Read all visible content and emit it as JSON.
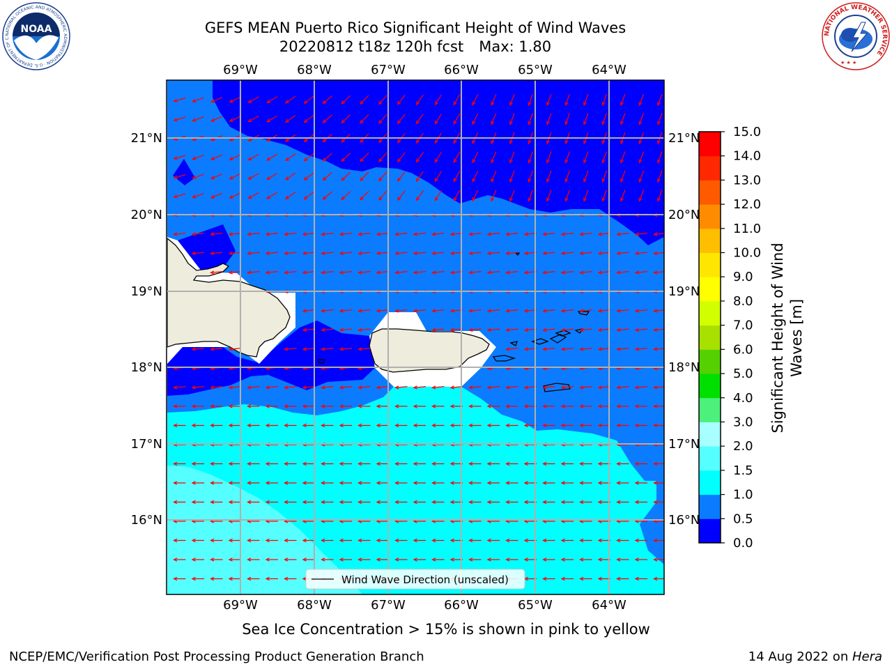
{
  "header": {
    "title_line1": "GEFS MEAN Puerto Rico Significant Height of Wind Waves",
    "title_line2_left": "20220812 t18z 120h fcst",
    "title_line2_right": "Max: 1.80"
  },
  "logos": {
    "left": {
      "name": "NOAA",
      "text": "NOAA",
      "ring_text": "NATIONAL OCEANIC AND ATMOSPHERIC ADMINISTRATION · U.S. DEPARTMENT OF COMMERCE"
    },
    "right": {
      "name": "National Weather Service",
      "ring_text": "NATIONAL WEATHER SERVICE"
    }
  },
  "map": {
    "lon_labels": [
      "69°W",
      "68°W",
      "67°W",
      "66°W",
      "65°W",
      "64°W"
    ],
    "lat_labels": [
      "21°N",
      "20°N",
      "19°N",
      "18°N",
      "17°N",
      "16°N"
    ],
    "legend_label": "Wind Wave Direction (unscaled)",
    "arrow_color": "#ff0000",
    "land_color": "#eeecdc"
  },
  "colorbar": {
    "label_line1": "Significant Height of Wind",
    "label_line2": "Waves [m]",
    "ticks": [
      "0.0",
      "0.5",
      "1.0",
      "1.5",
      "2.0",
      "3.0",
      "4.0",
      "5.0",
      "6.0",
      "7.0",
      "8.0",
      "9.0",
      "10.0",
      "11.0",
      "12.0",
      "13.0",
      "14.0",
      "15.0"
    ],
    "colors": [
      "#0000ff",
      "#0b7cff",
      "#00ffff",
      "#55ffff",
      "#a8ffff",
      "#4df07a",
      "#00e000",
      "#55d000",
      "#a8e000",
      "#d2ff00",
      "#ffff00",
      "#ffe600",
      "#ffbe00",
      "#ff8c00",
      "#ff5a00",
      "#ff2800",
      "#ff0000"
    ]
  },
  "footer": {
    "sea_ice_note": "Sea Ice Concentration > 15% is shown in pink to yellow",
    "left": "NCEP/EMC/Verification Post Processing Product Generation Branch",
    "right_prefix": "14 Aug 2022 on ",
    "right_host": "Hera"
  }
}
